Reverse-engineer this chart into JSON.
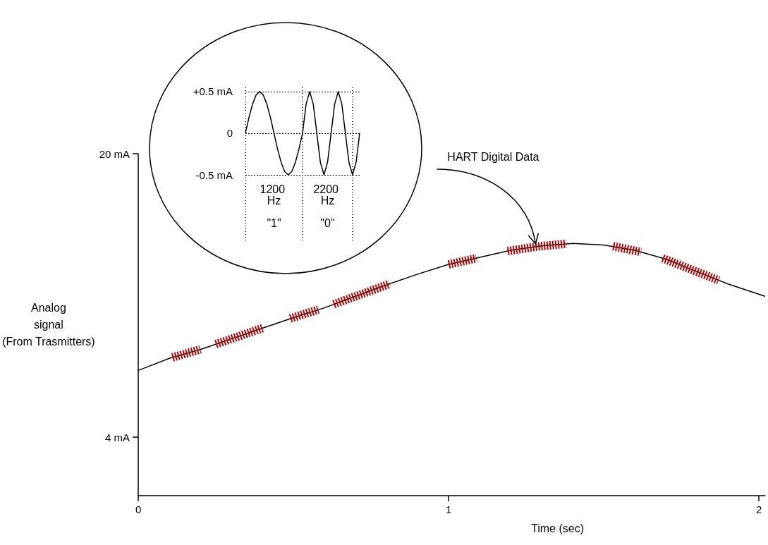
{
  "chart_data": [
    {
      "type": "line",
      "xlabel": "Time (sec)",
      "ylabel": "Analog\nsignal\n(From Trasmitters)",
      "xlim": [
        0,
        2.02
      ],
      "ylim": [
        0.7,
        20
      ],
      "xticks": [
        0,
        1,
        2
      ],
      "yticks": [
        {
          "value": 4,
          "label": "4 mA"
        },
        {
          "value": 20,
          "label": "20 mA"
        }
      ],
      "grid": false,
      "marker": "none",
      "annotations": [
        {
          "text": "HART Digital Data",
          "x": 1.28,
          "y": 14.75
        }
      ],
      "series": [
        {
          "color": "#000000",
          "line_style": "solid",
          "x": [
            0,
            0.1,
            0.2,
            0.3,
            0.4,
            0.5,
            0.6,
            0.7,
            0.8,
            0.9,
            1.0,
            1.1,
            1.2,
            1.3,
            1.4,
            1.5,
            1.6,
            1.7,
            1.8,
            1.9,
            2.02
          ],
          "values": [
            7.77,
            8.45,
            8.95,
            9.55,
            10.15,
            10.75,
            11.3,
            11.95,
            12.6,
            13.2,
            13.75,
            14.15,
            14.55,
            14.8,
            14.94,
            14.85,
            14.55,
            14.05,
            13.35,
            12.65,
            11.95
          ]
        },
        {
          "color": "#b00000",
          "line_style": "dashed",
          "x": [
            0.11,
            0.2,
            0.22,
            0.25,
            0.4,
            0.44,
            0.49,
            0.58,
            0.6,
            0.63,
            0.81,
            0.9,
            1.0,
            1.09,
            1.14,
            1.19,
            1.28,
            1.38,
            1.45,
            1.53,
            1.62,
            1.65,
            1.69,
            1.87
          ],
          "values": [
            8.5,
            8.95,
            null,
            9.25,
            10.15,
            null,
            10.7,
            11.2,
            null,
            11.5,
            12.65,
            null,
            13.75,
            14.1,
            null,
            14.5,
            14.75,
            14.92,
            null,
            14.78,
            14.45,
            null,
            14.1,
            12.85
          ]
        }
      ]
    },
    {
      "type": "line",
      "categories": [
        null,
        null,
        null,
        null,
        null,
        null,
        null,
        null,
        null,
        null,
        null,
        null,
        null,
        null,
        null,
        null,
        null,
        null,
        null,
        null,
        null,
        null,
        null,
        null,
        null,
        null,
        null,
        null,
        null,
        null,
        null,
        null,
        null
      ],
      "ylim": [
        -0.5,
        0.55
      ],
      "yticks": [
        {
          "value": -0.5,
          "label": "-0.5 mA"
        },
        0,
        {
          "value": 0.5,
          "label": "+0.5 mA"
        }
      ],
      "grid": "y",
      "marker": "none",
      "annotations": [
        "1200 Hz",
        "2200 Hz",
        "\"1\"",
        "\"0\""
      ],
      "series": [
        {
          "color": "#000000",
          "line_style": "solid",
          "values": [
            0,
            0.19,
            0.35,
            0.46,
            0.5,
            0.46,
            0.35,
            0.19,
            0,
            -0.19,
            -0.35,
            -0.46,
            -0.5,
            -0.46,
            -0.35,
            -0.19,
            0,
            0.35,
            0.5,
            0.35,
            0,
            -0.35,
            -0.5,
            -0.35,
            0,
            0.35,
            0.5,
            0.35,
            0,
            -0.35,
            -0.5,
            -0.35,
            0
          ]
        }
      ]
    }
  ]
}
